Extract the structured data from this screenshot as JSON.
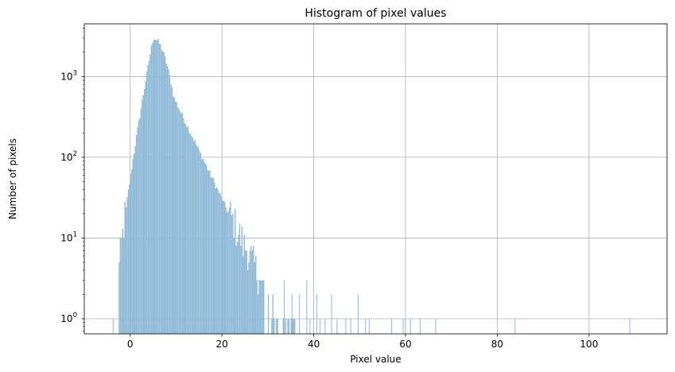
{
  "chart_data": {
    "type": "bar",
    "title": "Histogram of pixel values",
    "xlabel": "Pixel value",
    "ylabel": "Number of pixels",
    "xlim": [
      -10,
      117
    ],
    "ylim": [
      0.65,
      4500
    ],
    "yscale": "log",
    "grid": true,
    "bar_color": "#8fbad8",
    "bin_width": 0.25,
    "x_ticks": [
      {
        "value": 0,
        "label": "0"
      },
      {
        "value": 20,
        "label": "20"
      },
      {
        "value": 40,
        "label": "40"
      },
      {
        "value": 60,
        "label": "60"
      },
      {
        "value": 80,
        "label": "80"
      },
      {
        "value": 100,
        "label": "100"
      }
    ],
    "y_ticks": [
      {
        "value": 1,
        "base": "10",
        "exp": "0"
      },
      {
        "value": 10,
        "base": "10",
        "exp": "1"
      },
      {
        "value": 100,
        "base": "10",
        "exp": "2"
      },
      {
        "value": 1000,
        "base": "10",
        "exp": "3"
      }
    ],
    "outliers": [
      {
        "x": -3.8,
        "count": 1
      },
      {
        "x": 33.5,
        "count": 3
      },
      {
        "x": 35.2,
        "count": 2
      },
      {
        "x": 36.8,
        "count": 2
      },
      {
        "x": 38.4,
        "count": 3
      },
      {
        "x": 39.1,
        "count": 1
      },
      {
        "x": 40.6,
        "count": 2
      },
      {
        "x": 41.3,
        "count": 1
      },
      {
        "x": 42.4,
        "count": 1
      },
      {
        "x": 43.8,
        "count": 2
      },
      {
        "x": 45.0,
        "count": 1
      },
      {
        "x": 46.9,
        "count": 1
      },
      {
        "x": 48.0,
        "count": 1
      },
      {
        "x": 49.6,
        "count": 2
      },
      {
        "x": 51.2,
        "count": 1
      },
      {
        "x": 52.0,
        "count": 1
      },
      {
        "x": 56.9,
        "count": 1
      },
      {
        "x": 59.4,
        "count": 1
      },
      {
        "x": 59.9,
        "count": 1
      },
      {
        "x": 61.0,
        "count": 1
      },
      {
        "x": 63.1,
        "count": 1
      },
      {
        "x": 66.5,
        "count": 1
      },
      {
        "x": 83.8,
        "count": 1
      },
      {
        "x": 108.8,
        "count": 1
      }
    ]
  }
}
